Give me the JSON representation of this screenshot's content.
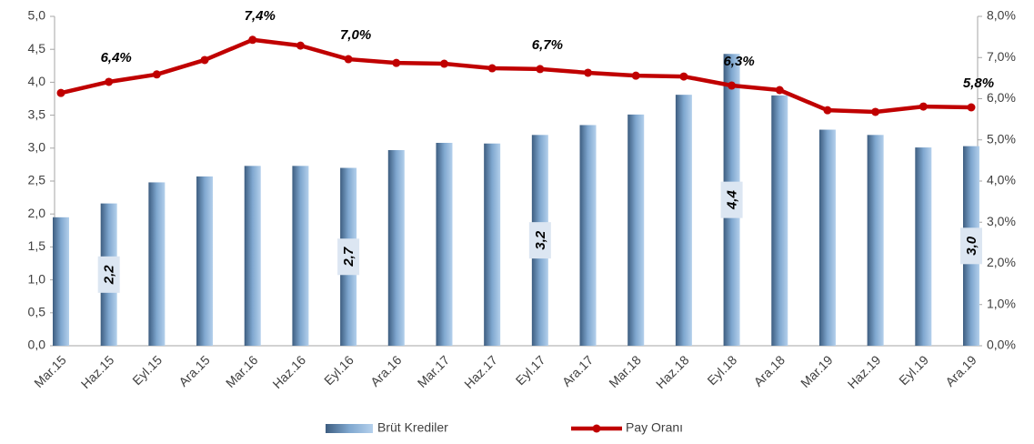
{
  "chart_data": {
    "type": "bar",
    "categories": [
      "Mar.15",
      "Haz.15",
      "Eyl.15",
      "Ara.15",
      "Mar.16",
      "Haz.16",
      "Eyl.16",
      "Ara.16",
      "Mar.17",
      "Haz.17",
      "Eyl.17",
      "Ara.17",
      "Mar.18",
      "Haz.18",
      "Eyl.18",
      "Ara.18",
      "Mar.19",
      "Haz.19",
      "Eyl.19",
      "Ara.19"
    ],
    "series": [
      {
        "name": "Brüt Krediler",
        "type": "bar",
        "color": "#7fa7cf",
        "values": [
          1.95,
          2.16,
          2.48,
          2.57,
          2.73,
          2.73,
          2.7,
          2.97,
          3.08,
          3.07,
          3.2,
          3.35,
          3.51,
          3.81,
          4.43,
          3.8,
          3.28,
          3.2,
          3.01,
          3.03
        ],
        "value_labels": [
          null,
          "2,2",
          null,
          null,
          null,
          null,
          "2,7",
          null,
          null,
          null,
          "3,2",
          null,
          null,
          null,
          "4,4",
          null,
          null,
          null,
          null,
          "3,0"
        ]
      },
      {
        "name": "Pay Oranı",
        "type": "line",
        "color": "#c00000",
        "axis": "y2",
        "values": [
          6.14,
          6.41,
          6.59,
          6.94,
          7.43,
          7.29,
          6.96,
          6.87,
          6.85,
          6.74,
          6.72,
          6.63,
          6.56,
          6.54,
          6.32,
          6.21,
          5.72,
          5.68,
          5.81,
          5.79
        ],
        "value_labels": [
          null,
          "6,4%",
          null,
          null,
          "7,4%",
          null,
          "7,0%",
          null,
          null,
          null,
          "6,7%",
          null,
          null,
          null,
          "6,3%",
          null,
          null,
          null,
          null,
          "5,8%"
        ]
      }
    ],
    "ylim": [
      0,
      5
    ],
    "yticks": [
      {
        "value": 0,
        "label": "0,0"
      },
      {
        "value": 0.5,
        "label": "0,5"
      },
      {
        "value": 1,
        "label": "1,0"
      },
      {
        "value": 1.5,
        "label": "1,5"
      },
      {
        "value": 2,
        "label": "2,0"
      },
      {
        "value": 2.5,
        "label": "2,5"
      },
      {
        "value": 3,
        "label": "3,0"
      },
      {
        "value": 3.5,
        "label": "3,5"
      },
      {
        "value": 4,
        "label": "4,0"
      },
      {
        "value": 4.5,
        "label": "4,5"
      },
      {
        "value": 5,
        "label": "5,0"
      }
    ],
    "y2lim": [
      0,
      8
    ],
    "y2ticks": [
      {
        "value": 0,
        "label": "0,0%"
      },
      {
        "value": 1,
        "label": "1,0%"
      },
      {
        "value": 2,
        "label": "2,0%"
      },
      {
        "value": 3,
        "label": "3,0%"
      },
      {
        "value": 4,
        "label": "4,0%"
      },
      {
        "value": 5,
        "label": "5,0%"
      },
      {
        "value": 6,
        "label": "6,0%"
      },
      {
        "value": 7,
        "label": "7,0%"
      },
      {
        "value": 8,
        "label": "8,0%"
      }
    ],
    "legend": "bottom"
  }
}
